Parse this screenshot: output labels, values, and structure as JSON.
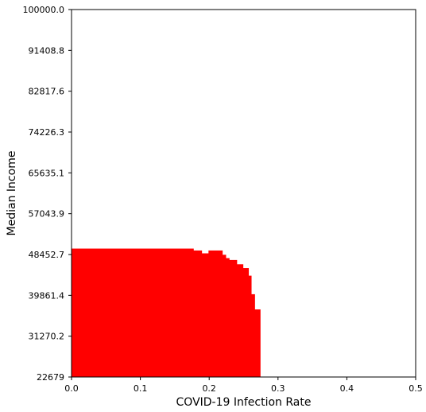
{
  "chart_data": {
    "type": "area",
    "xlabel": "COVID-19 Infection Rate",
    "ylabel": "Median Income",
    "xlim": [
      0,
      0.5
    ],
    "ylim": [
      22679,
      100000
    ],
    "x_ticks": [
      0.0,
      0.1,
      0.2,
      0.3,
      0.4,
      0.5
    ],
    "x_tick_labels": [
      "0.0",
      "0.1",
      "0.2",
      "0.3",
      "0.4",
      "0.5"
    ],
    "y_ticks": [
      22679,
      31270.2,
      39861.4,
      48452.7,
      57043.9,
      65635.1,
      74226.3,
      82817.6,
      91408.8,
      100000.0
    ],
    "y_tick_labels": [
      "22679",
      "31270.2",
      "39861.4",
      "48452.7",
      "57043.9",
      "65635.1",
      "74226.3",
      "82817.6",
      "91408.8",
      "100000.0"
    ],
    "grid": false,
    "fill_color": "#ff0000",
    "steps": [
      {
        "x": [
          0.0,
          0.177
        ],
        "y": 49700
      },
      {
        "x": [
          0.177,
          0.189
        ],
        "y": 49300
      },
      {
        "x": [
          0.189,
          0.199
        ],
        "y": 48700
      },
      {
        "x": [
          0.199,
          0.219
        ],
        "y": 49300
      },
      {
        "x": [
          0.219,
          0.224
        ],
        "y": 48400
      },
      {
        "x": [
          0.224,
          0.229
        ],
        "y": 47700
      },
      {
        "x": [
          0.229,
          0.24
        ],
        "y": 47300
      },
      {
        "x": [
          0.24,
          0.249
        ],
        "y": 46400
      },
      {
        "x": [
          0.249,
          0.257
        ],
        "y": 45600
      },
      {
        "x": [
          0.257,
          0.261
        ],
        "y": 44000
      },
      {
        "x": [
          0.261,
          0.266
        ],
        "y": 40100
      },
      {
        "x": [
          0.266,
          0.274
        ],
        "y": 36900
      }
    ]
  }
}
